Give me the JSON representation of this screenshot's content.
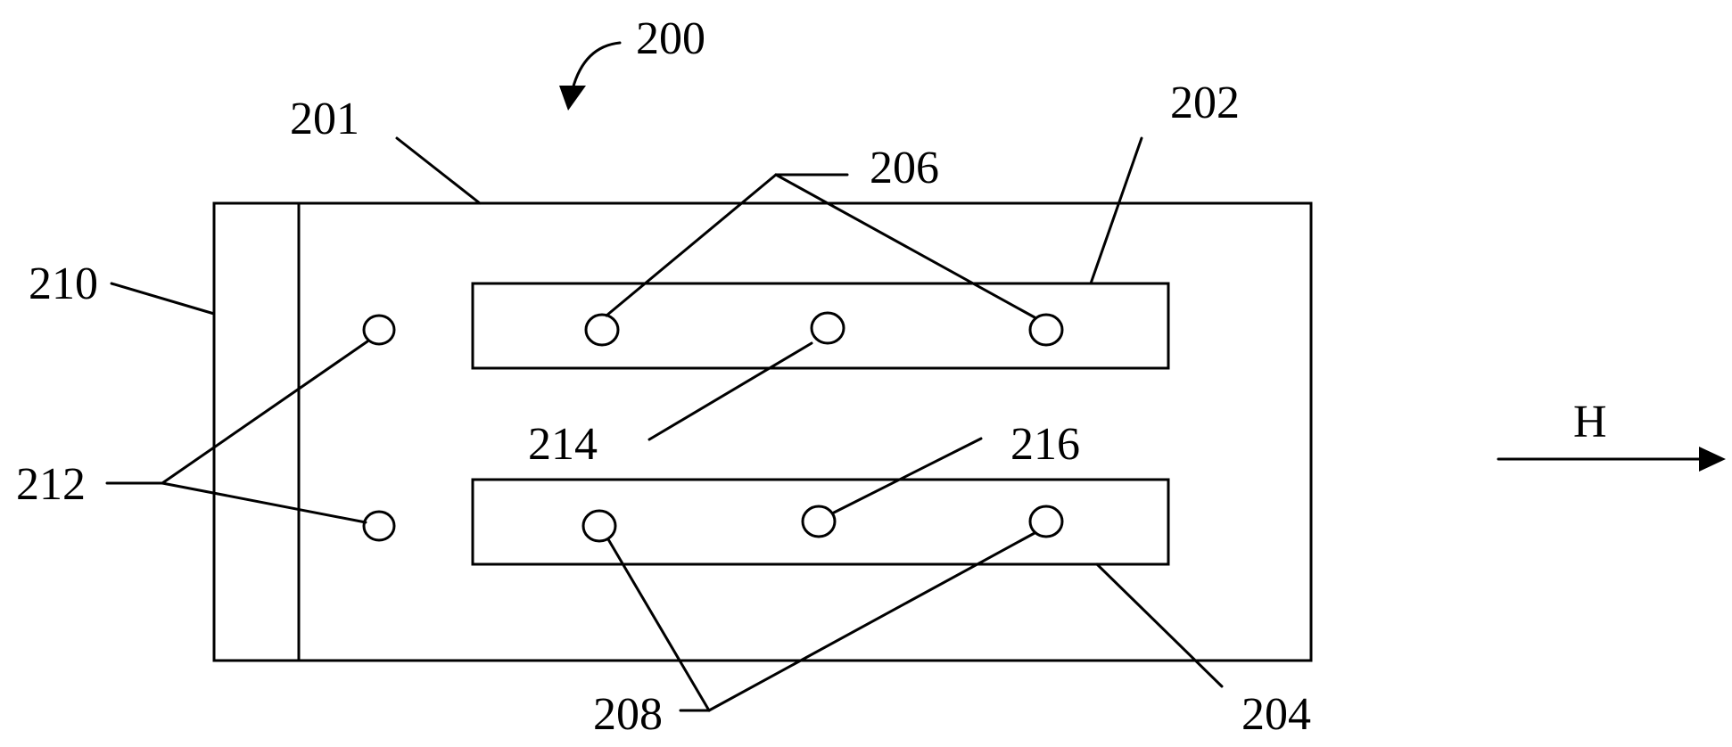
{
  "figure": {
    "ref_200": "200",
    "ref_201": "201",
    "ref_202": "202",
    "ref_204": "204",
    "ref_206": "206",
    "ref_208": "208",
    "ref_210": "210",
    "ref_212": "212",
    "ref_214": "214",
    "ref_216": "216",
    "field_label": "H"
  },
  "colors": {
    "line": "#000000",
    "background": "#ffffff"
  }
}
